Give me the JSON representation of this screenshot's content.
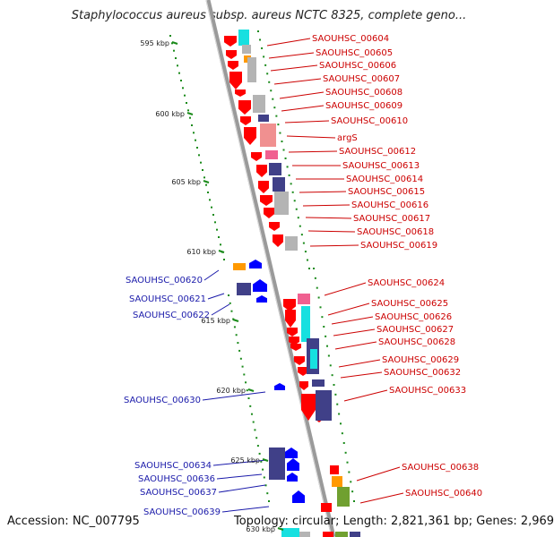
{
  "title": "Staphylococcus aureus subsp. aureus NCTC 8325, complete geno...",
  "footer": {
    "accession": "Accession: NC_007795",
    "summary": "Topology: circular; Length: 2,821,361 bp; Genes: 2,969"
  },
  "kbp_markers": [
    "595 kbp",
    "600 kbp",
    "605 kbp",
    "610 kbp",
    "615 kbp",
    "620 kbp",
    "625 kbp",
    "630 kbp"
  ],
  "colors": {
    "backbone": "#9a9a9a",
    "forward_gene": "#ff0000",
    "reverse_gene": "#0000ff",
    "forward_label": "#cc0000",
    "reverse_label": "#1a1aaa",
    "gc_dots": "#1a8a1a",
    "feature_gray": "#b4b4b4",
    "feature_cyan": "#17e0e0",
    "feature_navy": "#404088",
    "feature_pink": "#f06090",
    "feature_orange": "#ff9900",
    "feature_olive": "#70a030"
  },
  "forward_genes": [
    "SAOUHSC_00604",
    "SAOUHSC_00605",
    "SAOUHSC_00606",
    "SAOUHSC_00607",
    "SAOUHSC_00608",
    "SAOUHSC_00609",
    "SAOUHSC_00610",
    "argS",
    "SAOUHSC_00612",
    "SAOUHSC_00613",
    "SAOUHSC_00614",
    "SAOUHSC_00615",
    "SAOUHSC_00616",
    "SAOUHSC_00617",
    "SAOUHSC_00618",
    "SAOUHSC_00619",
    "SAOUHSC_00624",
    "SAOUHSC_00625",
    "SAOUHSC_00626",
    "SAOUHSC_00627",
    "SAOUHSC_00628",
    "SAOUHSC_00629",
    "SAOUHSC_00632",
    "SAOUHSC_00633",
    "SAOUHSC_00638",
    "SAOUHSC_00640"
  ],
  "reverse_genes": [
    "SAOUHSC_00620",
    "SAOUHSC_00621",
    "SAOUHSC_00622",
    "SAOUHSC_00630",
    "SAOUHSC_00634",
    "SAOUHSC_00636",
    "SAOUHSC_00637",
    "SAOUHSC_00639"
  ]
}
